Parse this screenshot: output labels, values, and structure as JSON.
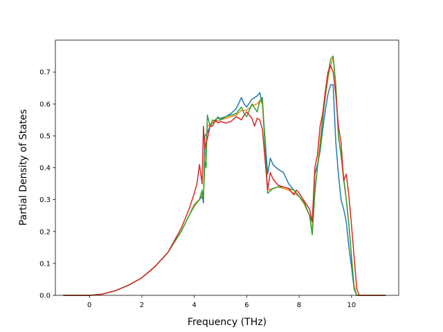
{
  "chart_data": {
    "type": "line",
    "xlabel": "Frequency (THz)",
    "ylabel": "Partial Density of States",
    "xlim": [
      -1.3,
      11.8
    ],
    "ylim": [
      0,
      0.8
    ],
    "xticks": [
      0,
      2,
      4,
      6,
      8,
      10
    ],
    "yticks": [
      0.0,
      0.1,
      0.2,
      0.3,
      0.4,
      0.5,
      0.6,
      0.7
    ],
    "grid": false,
    "legend": "none",
    "series": [
      {
        "color": "#1f77b4",
        "x": [
          -1.0,
          -0.5,
          0.0,
          0.5,
          1.0,
          1.5,
          2.0,
          2.5,
          3.0,
          3.5,
          3.8,
          4.0,
          4.2,
          4.3,
          4.35,
          4.4,
          4.5,
          4.6,
          4.7,
          4.8,
          4.9,
          5.0,
          5.2,
          5.4,
          5.6,
          5.8,
          5.9,
          6.0,
          6.2,
          6.4,
          6.5,
          6.6,
          6.8,
          6.9,
          7.0,
          7.2,
          7.4,
          7.6,
          7.8,
          8.0,
          8.2,
          8.4,
          8.5,
          8.6,
          8.7,
          8.8,
          8.9,
          9.0,
          9.1,
          9.2,
          9.3,
          9.4,
          9.5,
          9.6,
          9.7,
          9.8,
          9.9,
          10.0,
          10.1,
          10.2,
          10.3,
          10.5,
          11.0,
          11.3
        ],
        "y": [
          0,
          0,
          0,
          0.004,
          0.015,
          0.032,
          0.055,
          0.09,
          0.135,
          0.2,
          0.25,
          0.285,
          0.3,
          0.31,
          0.29,
          0.5,
          0.51,
          0.53,
          0.54,
          0.55,
          0.555,
          0.555,
          0.56,
          0.57,
          0.585,
          0.62,
          0.6,
          0.59,
          0.615,
          0.625,
          0.635,
          0.6,
          0.38,
          0.43,
          0.41,
          0.395,
          0.385,
          0.35,
          0.33,
          0.31,
          0.29,
          0.25,
          0.23,
          0.38,
          0.41,
          0.45,
          0.52,
          0.58,
          0.63,
          0.66,
          0.66,
          0.48,
          0.38,
          0.3,
          0.27,
          0.23,
          0.15,
          0.09,
          0.02,
          0,
          0,
          0,
          0,
          0
        ]
      },
      {
        "color": "#ff7f0e",
        "x": [
          -1.0,
          -0.5,
          0.0,
          0.5,
          1.0,
          1.5,
          2.0,
          2.5,
          3.0,
          3.5,
          3.8,
          4.0,
          4.2,
          4.3,
          4.35,
          4.4,
          4.5,
          4.6,
          4.8,
          5.0,
          5.2,
          5.4,
          5.6,
          5.8,
          6.0,
          6.2,
          6.4,
          6.5,
          6.6,
          6.8,
          7.0,
          7.2,
          7.4,
          7.6,
          7.8,
          8.0,
          8.2,
          8.4,
          8.5,
          8.6,
          8.7,
          8.8,
          8.9,
          9.0,
          9.1,
          9.2,
          9.3,
          9.4,
          9.5,
          9.6,
          9.7,
          9.8,
          9.9,
          10.0,
          10.1,
          10.2,
          10.3,
          10.5,
          11.0,
          11.3
        ],
        "y": [
          0,
          0,
          0,
          0.004,
          0.015,
          0.032,
          0.055,
          0.09,
          0.135,
          0.2,
          0.25,
          0.285,
          0.3,
          0.32,
          0.3,
          0.42,
          0.53,
          0.535,
          0.545,
          0.55,
          0.555,
          0.56,
          0.565,
          0.58,
          0.58,
          0.595,
          0.6,
          0.61,
          0.6,
          0.33,
          0.335,
          0.34,
          0.335,
          0.33,
          0.32,
          0.31,
          0.285,
          0.25,
          0.2,
          0.33,
          0.4,
          0.48,
          0.56,
          0.62,
          0.68,
          0.72,
          0.745,
          0.66,
          0.5,
          0.44,
          0.36,
          0.3,
          0.22,
          0.12,
          0.03,
          0,
          0,
          0,
          0,
          0
        ]
      },
      {
        "color": "#2ca02c",
        "x": [
          -1.0,
          -0.5,
          0.0,
          0.5,
          1.0,
          1.5,
          2.0,
          2.5,
          3.0,
          3.5,
          3.8,
          4.0,
          4.2,
          4.3,
          4.35,
          4.4,
          4.45,
          4.5,
          4.6,
          4.7,
          4.8,
          4.9,
          5.0,
          5.2,
          5.4,
          5.6,
          5.8,
          5.9,
          6.0,
          6.2,
          6.4,
          6.5,
          6.6,
          6.8,
          7.0,
          7.2,
          7.4,
          7.6,
          7.8,
          8.0,
          8.2,
          8.4,
          8.5,
          8.6,
          8.7,
          8.8,
          8.9,
          9.0,
          9.1,
          9.2,
          9.3,
          9.4,
          9.5,
          9.6,
          9.7,
          9.8,
          9.9,
          10.0,
          10.1,
          10.2,
          10.3,
          10.5,
          11.0,
          11.3
        ],
        "y": [
          0,
          0,
          0,
          0.004,
          0.015,
          0.032,
          0.055,
          0.09,
          0.135,
          0.2,
          0.25,
          0.28,
          0.3,
          0.33,
          0.3,
          0.42,
          0.4,
          0.565,
          0.53,
          0.55,
          0.545,
          0.56,
          0.55,
          0.56,
          0.565,
          0.57,
          0.59,
          0.57,
          0.56,
          0.6,
          0.575,
          0.61,
          0.62,
          0.32,
          0.335,
          0.34,
          0.34,
          0.335,
          0.33,
          0.31,
          0.29,
          0.25,
          0.19,
          0.32,
          0.4,
          0.46,
          0.55,
          0.63,
          0.69,
          0.74,
          0.75,
          0.66,
          0.5,
          0.44,
          0.37,
          0.3,
          0.22,
          0.12,
          0.02,
          0,
          0,
          0,
          0,
          0
        ]
      },
      {
        "color": "#d62728",
        "x": [
          -1.0,
          -0.5,
          0.0,
          0.5,
          1.0,
          1.5,
          2.0,
          2.5,
          3.0,
          3.5,
          3.8,
          4.0,
          4.1,
          4.2,
          4.3,
          4.35,
          4.4,
          4.45,
          4.5,
          4.6,
          4.7,
          4.8,
          4.9,
          5.0,
          5.2,
          5.4,
          5.6,
          5.8,
          5.9,
          6.0,
          6.2,
          6.3,
          6.4,
          6.5,
          6.6,
          6.8,
          6.9,
          7.0,
          7.2,
          7.4,
          7.6,
          7.8,
          7.9,
          8.0,
          8.2,
          8.4,
          8.5,
          8.6,
          8.7,
          8.8,
          8.9,
          9.0,
          9.1,
          9.2,
          9.3,
          9.4,
          9.5,
          9.6,
          9.7,
          9.8,
          9.9,
          10.0,
          10.1,
          10.2,
          10.3,
          10.5,
          11.0,
          11.3
        ],
        "y": [
          0,
          0,
          0,
          0.004,
          0.015,
          0.032,
          0.055,
          0.09,
          0.135,
          0.21,
          0.27,
          0.32,
          0.35,
          0.41,
          0.35,
          0.53,
          0.46,
          0.48,
          0.49,
          0.53,
          0.53,
          0.55,
          0.54,
          0.545,
          0.54,
          0.545,
          0.56,
          0.55,
          0.565,
          0.575,
          0.555,
          0.53,
          0.555,
          0.55,
          0.52,
          0.33,
          0.385,
          0.365,
          0.345,
          0.34,
          0.335,
          0.315,
          0.33,
          0.32,
          0.295,
          0.27,
          0.23,
          0.4,
          0.44,
          0.53,
          0.57,
          0.64,
          0.7,
          0.72,
          0.7,
          0.63,
          0.53,
          0.48,
          0.36,
          0.38,
          0.31,
          0.22,
          0.12,
          0.02,
          0,
          0,
          0,
          0
        ]
      }
    ]
  }
}
